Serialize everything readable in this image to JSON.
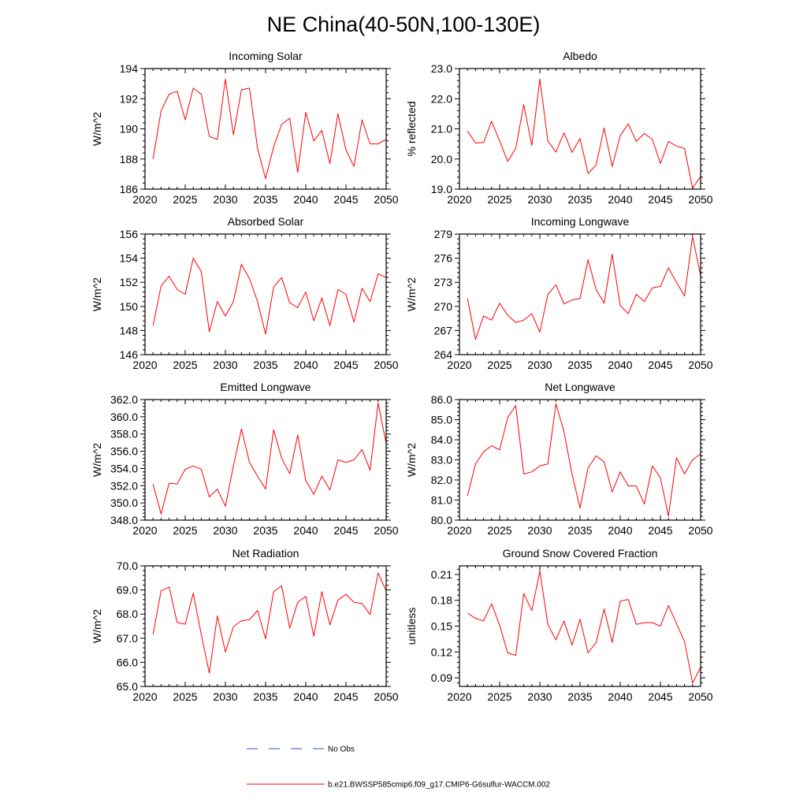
{
  "figure": {
    "title": "NE China(40-50N,100-130E)",
    "line_color": "#ff0000",
    "obs_color": "#3a4bd8",
    "legend": [
      {
        "label": "No Obs",
        "style": "dashed",
        "color": "#3a4bd8"
      },
      {
        "label": "b.e21.BWSSP585cmip6.f09_g17.CMIP6-G6sulfur-WACCM.002",
        "style": "solid",
        "color": "#ff0000"
      }
    ]
  },
  "chart_data": [
    {
      "type": "line",
      "title": "Incoming Solar",
      "ylabel": "W/m^2",
      "xlim": [
        2020,
        2050
      ],
      "ylim": [
        186,
        194
      ],
      "xticks": [
        2020,
        2025,
        2030,
        2035,
        2040,
        2045,
        2050
      ],
      "yticks": [
        186,
        188,
        190,
        192,
        194
      ],
      "ytick_labels": [
        "186",
        "188",
        "190",
        "192",
        "194"
      ],
      "grid": false,
      "x": [
        2021,
        2022,
        2023,
        2024,
        2025,
        2026,
        2027,
        2028,
        2029,
        2030,
        2031,
        2032,
        2033,
        2034,
        2035,
        2036,
        2037,
        2038,
        2039,
        2040,
        2041,
        2042,
        2043,
        2044,
        2045,
        2046,
        2047,
        2048,
        2049,
        2050
      ],
      "series": [
        {
          "name": "b.e21.BWSSP585cmip6.f09_g17.CMIP6-G6sulfur-WACCM.002",
          "values": [
            188.0,
            191.2,
            192.3,
            192.5,
            190.6,
            192.7,
            192.3,
            189.5,
            189.3,
            193.3,
            189.6,
            192.6,
            192.7,
            188.7,
            186.7,
            188.8,
            190.3,
            190.7,
            187.1,
            191.1,
            189.2,
            189.9,
            187.7,
            191.0,
            188.6,
            187.5,
            190.6,
            189.0,
            189.0,
            189.3
          ]
        }
      ]
    },
    {
      "type": "line",
      "title": "Albedo",
      "ylabel": "% reflected",
      "xlim": [
        2020,
        2050
      ],
      "ylim": [
        19.0,
        23.0
      ],
      "xticks": [
        2020,
        2025,
        2030,
        2035,
        2040,
        2045,
        2050
      ],
      "yticks": [
        19.0,
        20.0,
        21.0,
        22.0,
        23.0
      ],
      "ytick_labels": [
        "19.0",
        "20.0",
        "21.0",
        "22.0",
        "23.0"
      ],
      "grid": false,
      "x": [
        2021,
        2022,
        2023,
        2024,
        2025,
        2026,
        2027,
        2028,
        2029,
        2030,
        2031,
        2032,
        2033,
        2034,
        2035,
        2036,
        2037,
        2038,
        2039,
        2040,
        2041,
        2042,
        2043,
        2044,
        2045,
        2046,
        2047,
        2048,
        2049,
        2050
      ],
      "series": [
        {
          "name": "b.e21.BWSSP585cmip6.f09_g17.CMIP6-G6sulfur-WACCM.002",
          "values": [
            20.93,
            20.53,
            20.55,
            21.25,
            20.6,
            19.92,
            20.35,
            21.8,
            20.45,
            22.65,
            20.6,
            20.23,
            20.87,
            20.22,
            20.68,
            19.52,
            19.8,
            21.03,
            19.75,
            20.77,
            21.17,
            20.58,
            20.85,
            20.65,
            19.85,
            20.58,
            20.43,
            20.35,
            19.03,
            19.42
          ]
        }
      ]
    },
    {
      "type": "line",
      "title": "Absorbed Solar",
      "ylabel": "W/m^2",
      "xlim": [
        2020,
        2050
      ],
      "ylim": [
        146,
        156
      ],
      "xticks": [
        2020,
        2025,
        2030,
        2035,
        2040,
        2045,
        2050
      ],
      "yticks": [
        146,
        148,
        150,
        152,
        154,
        156
      ],
      "ytick_labels": [
        "146",
        "148",
        "150",
        "152",
        "154",
        "156"
      ],
      "grid": false,
      "x": [
        2021,
        2022,
        2023,
        2024,
        2025,
        2026,
        2027,
        2028,
        2029,
        2030,
        2031,
        2032,
        2033,
        2034,
        2035,
        2036,
        2037,
        2038,
        2039,
        2040,
        2041,
        2042,
        2043,
        2044,
        2045,
        2046,
        2047,
        2048,
        2049,
        2050
      ],
      "series": [
        {
          "name": "b.e21.BWSSP585cmip6.f09_g17.CMIP6-G6sulfur-WACCM.002",
          "values": [
            148.4,
            151.7,
            152.5,
            151.4,
            151.0,
            154.0,
            152.9,
            147.9,
            150.4,
            149.2,
            150.4,
            153.5,
            152.3,
            150.4,
            147.7,
            151.6,
            152.4,
            150.3,
            149.9,
            151.2,
            148.8,
            150.7,
            148.4,
            151.4,
            151.0,
            148.7,
            151.5,
            150.4,
            152.7,
            152.4
          ]
        }
      ]
    },
    {
      "type": "line",
      "title": "Incoming Longwave",
      "ylabel": "W/m^2",
      "xlim": [
        2020,
        2050
      ],
      "ylim": [
        264,
        279
      ],
      "xticks": [
        2020,
        2025,
        2030,
        2035,
        2040,
        2045,
        2050
      ],
      "yticks": [
        264,
        267,
        270,
        273,
        276,
        279
      ],
      "ytick_labels": [
        "264",
        "267",
        "270",
        "273",
        "276",
        "279"
      ],
      "grid": false,
      "x": [
        2021,
        2022,
        2023,
        2024,
        2025,
        2026,
        2027,
        2028,
        2029,
        2030,
        2031,
        2032,
        2033,
        2034,
        2035,
        2036,
        2037,
        2038,
        2039,
        2040,
        2041,
        2042,
        2043,
        2044,
        2045,
        2046,
        2047,
        2048,
        2049,
        2050
      ],
      "series": [
        {
          "name": "b.e21.BWSSP585cmip6.f09_g17.CMIP6-G6sulfur-WACCM.002",
          "values": [
            271.0,
            265.9,
            268.8,
            268.3,
            270.4,
            268.9,
            268.0,
            268.3,
            269.1,
            266.8,
            271.5,
            272.7,
            270.3,
            270.8,
            271.0,
            275.8,
            272.1,
            270.4,
            276.5,
            270.1,
            269.1,
            271.5,
            270.6,
            272.3,
            272.5,
            274.8,
            273.0,
            271.3,
            278.7,
            273.8
          ]
        }
      ]
    },
    {
      "type": "line",
      "title": "Emitted Longwave",
      "ylabel": "W/m^2",
      "xlim": [
        2020,
        2050
      ],
      "ylim": [
        348.0,
        362.0
      ],
      "xticks": [
        2020,
        2025,
        2030,
        2035,
        2040,
        2045,
        2050
      ],
      "yticks": [
        348.0,
        350.0,
        352.0,
        354.0,
        356.0,
        358.0,
        360.0,
        362.0
      ],
      "ytick_labels": [
        "348.0",
        "350.0",
        "352.0",
        "354.0",
        "356.0",
        "358.0",
        "360.0",
        "362.0"
      ],
      "grid": false,
      "x": [
        2021,
        2022,
        2023,
        2024,
        2025,
        2026,
        2027,
        2028,
        2029,
        2030,
        2031,
        2032,
        2033,
        2034,
        2035,
        2036,
        2037,
        2038,
        2039,
        2040,
        2041,
        2042,
        2043,
        2044,
        2045,
        2046,
        2047,
        2048,
        2049,
        2050
      ],
      "series": [
        {
          "name": "b.e21.BWSSP585cmip6.f09_g17.CMIP6-G6sulfur-WACCM.002",
          "values": [
            352.2,
            348.7,
            352.3,
            352.2,
            353.9,
            354.3,
            353.9,
            350.7,
            351.6,
            349.6,
            354.3,
            358.6,
            354.7,
            353.1,
            351.6,
            358.5,
            355.2,
            353.4,
            357.9,
            352.6,
            351.0,
            353.1,
            351.5,
            355.0,
            354.7,
            355.0,
            356.2,
            353.8,
            361.6,
            356.9
          ]
        }
      ]
    },
    {
      "type": "line",
      "title": "Net Longwave",
      "ylabel": "W/m^2",
      "xlim": [
        2020,
        2050
      ],
      "ylim": [
        80.0,
        86.0
      ],
      "xticks": [
        2020,
        2025,
        2030,
        2035,
        2040,
        2045,
        2050
      ],
      "yticks": [
        80.0,
        81.0,
        82.0,
        83.0,
        84.0,
        85.0,
        86.0
      ],
      "ytick_labels": [
        "80.0",
        "81.0",
        "82.0",
        "83.0",
        "84.0",
        "85.0",
        "86.0"
      ],
      "grid": false,
      "x": [
        2021,
        2022,
        2023,
        2024,
        2025,
        2026,
        2027,
        2028,
        2029,
        2030,
        2031,
        2032,
        2033,
        2034,
        2035,
        2036,
        2037,
        2038,
        2039,
        2040,
        2041,
        2042,
        2043,
        2044,
        2045,
        2046,
        2047,
        2048,
        2049,
        2050
      ],
      "series": [
        {
          "name": "b.e21.BWSSP585cmip6.f09_g17.CMIP6-G6sulfur-WACCM.002",
          "values": [
            81.2,
            82.8,
            83.4,
            83.7,
            83.5,
            85.1,
            85.7,
            82.3,
            82.4,
            82.7,
            82.8,
            85.8,
            84.4,
            82.3,
            80.6,
            82.6,
            83.2,
            82.9,
            81.4,
            82.4,
            81.7,
            81.7,
            80.8,
            82.7,
            82.1,
            80.2,
            83.1,
            82.3,
            83.0,
            83.3
          ]
        }
      ]
    },
    {
      "type": "line",
      "title": "Net Radiation",
      "ylabel": "W/m^2",
      "xlim": [
        2020,
        2050
      ],
      "ylim": [
        65.0,
        70.0
      ],
      "xticks": [
        2020,
        2025,
        2030,
        2035,
        2040,
        2045,
        2050
      ],
      "yticks": [
        65.0,
        66.0,
        67.0,
        68.0,
        69.0,
        70.0
      ],
      "ytick_labels": [
        "65.0",
        "66.0",
        "67.0",
        "68.0",
        "69.0",
        "70.0"
      ],
      "grid": false,
      "x": [
        2021,
        2022,
        2023,
        2024,
        2025,
        2026,
        2027,
        2028,
        2029,
        2030,
        2031,
        2032,
        2033,
        2034,
        2035,
        2036,
        2037,
        2038,
        2039,
        2040,
        2041,
        2042,
        2043,
        2044,
        2045,
        2046,
        2047,
        2048,
        2049,
        2050
      ],
      "series": [
        {
          "name": "b.e21.BWSSP585cmip6.f09_g17.CMIP6-G6sulfur-WACCM.002",
          "values": [
            67.15,
            68.97,
            69.12,
            67.65,
            67.58,
            68.87,
            67.15,
            65.55,
            67.93,
            66.43,
            67.48,
            67.72,
            67.77,
            68.15,
            66.98,
            68.93,
            69.17,
            67.42,
            68.49,
            68.73,
            67.08,
            68.93,
            67.55,
            68.58,
            68.82,
            68.49,
            68.44,
            67.98,
            69.7,
            68.97
          ]
        }
      ]
    },
    {
      "type": "line",
      "title": "Ground Snow Covered Fraction",
      "ylabel": "unitless",
      "xlim": [
        2020,
        2050
      ],
      "ylim": [
        0.08,
        0.22
      ],
      "xticks": [
        2020,
        2025,
        2030,
        2035,
        2040,
        2045,
        2050
      ],
      "yticks": [
        0.09,
        0.12,
        0.15,
        0.18,
        0.21
      ],
      "ytick_labels": [
        "0.09",
        "0.12",
        "0.15",
        "0.18",
        "0.21"
      ],
      "grid": false,
      "x": [
        2021,
        2022,
        2023,
        2024,
        2025,
        2026,
        2027,
        2028,
        2029,
        2030,
        2031,
        2032,
        2033,
        2034,
        2035,
        2036,
        2037,
        2038,
        2039,
        2040,
        2041,
        2042,
        2043,
        2044,
        2045,
        2046,
        2047,
        2048,
        2049,
        2050
      ],
      "series": [
        {
          "name": "b.e21.BWSSP585cmip6.f09_g17.CMIP6-G6sulfur-WACCM.002",
          "values": [
            0.165,
            0.159,
            0.156,
            0.176,
            0.151,
            0.119,
            0.116,
            0.188,
            0.168,
            0.214,
            0.152,
            0.134,
            0.156,
            0.128,
            0.158,
            0.119,
            0.131,
            0.17,
            0.131,
            0.179,
            0.181,
            0.152,
            0.154,
            0.154,
            0.15,
            0.174,
            0.153,
            0.132,
            0.084,
            0.102
          ]
        }
      ]
    }
  ]
}
